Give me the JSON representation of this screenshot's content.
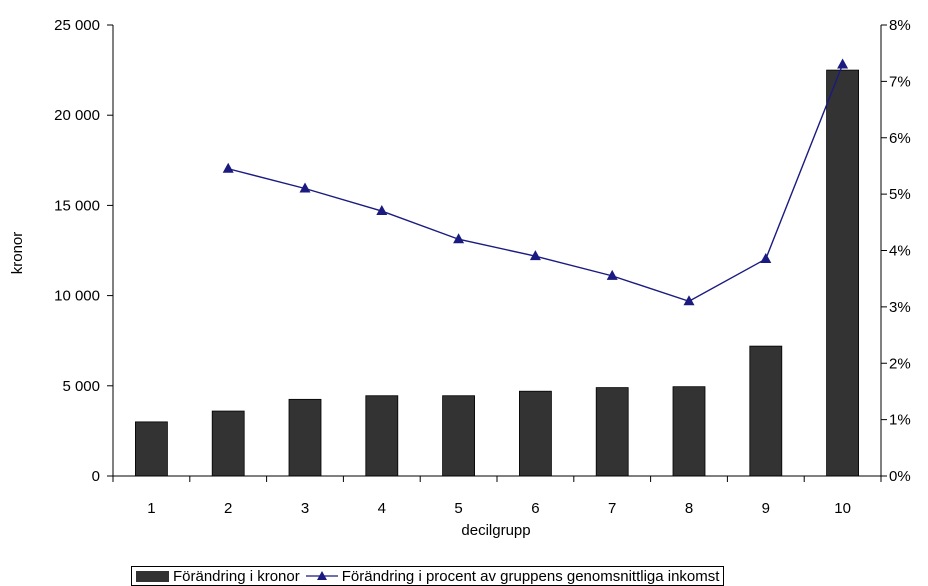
{
  "chart_data": {
    "type": "bar",
    "categories": [
      "1",
      "2",
      "3",
      "4",
      "5",
      "6",
      "7",
      "8",
      "9",
      "10"
    ],
    "xlabel": "decilgrupp",
    "ylabel": "kronor",
    "ylim": [
      0,
      25000
    ],
    "y2lim": [
      0,
      8
    ],
    "y_ticks": [
      "0",
      "5 000",
      "10 000",
      "15 000",
      "20 000",
      "25 000"
    ],
    "y2_ticks": [
      "0%",
      "1%",
      "2%",
      "3%",
      "4%",
      "5%",
      "6%",
      "7%",
      "8%"
    ],
    "grid": false,
    "legend_position": "bottom",
    "series": [
      {
        "name": "Förändring i kronor",
        "type": "bar",
        "axis": "left",
        "color": "#333333",
        "values": [
          3000,
          3600,
          4250,
          4450,
          4450,
          4700,
          4900,
          4950,
          7200,
          22500
        ]
      },
      {
        "name": "Förändring i procent av gruppens genomsnittliga inkomst",
        "type": "line",
        "axis": "right",
        "unit": "%",
        "color": "#1a1a80",
        "marker": "triangle",
        "values": [
          null,
          5.45,
          5.1,
          4.7,
          4.2,
          3.9,
          3.55,
          3.1,
          3.85,
          7.3
        ]
      }
    ]
  }
}
